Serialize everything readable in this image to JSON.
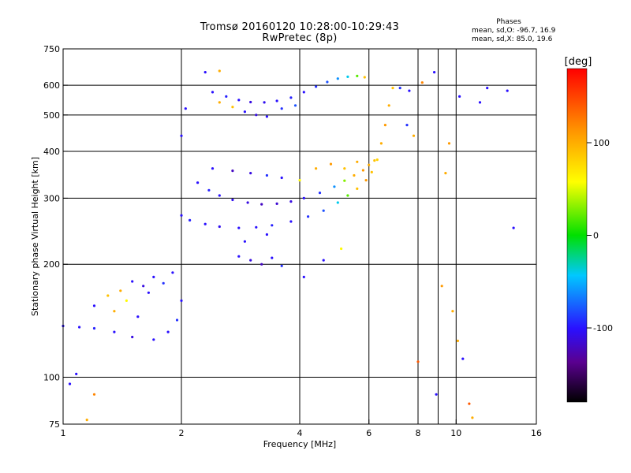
{
  "header": {
    "title": "Tromsø 20160120 10:28:00-10:29:43",
    "subtitle": "RwPretec (8p)",
    "stats_title": "Phases",
    "stats_lines": [
      "mean, sd,O: -96.7, 16.9",
      "mean, sd,X:  85.0, 19.6"
    ]
  },
  "colorbar": {
    "label": "[deg]",
    "ticks": [
      {
        "value": 100,
        "label": "100"
      },
      {
        "value": 0,
        "label": "0"
      },
      {
        "value": -100,
        "label": "-100"
      }
    ],
    "range": [
      -180,
      180
    ]
  },
  "chart_data": {
    "type": "scatter",
    "title": "Tromsø 20160120 10:28:00-10:29:43",
    "subtitle": "RwPretec (8p)",
    "xlabel": "Frequency [MHz]",
    "ylabel": "Stationary phase Virtual Height [km]",
    "x_scale": "log",
    "y_scale": "log",
    "xlim": [
      1,
      16
    ],
    "ylim": [
      75,
      750
    ],
    "x_ticks": [
      {
        "value": 1,
        "label": "1"
      },
      {
        "value": 2,
        "label": "2"
      },
      {
        "value": 4,
        "label": "4"
      },
      {
        "value": 6,
        "label": "6"
      },
      {
        "value": 8,
        "label": "8"
      },
      {
        "value": 10,
        "label": "10"
      },
      {
        "value": 16,
        "label": "16"
      }
    ],
    "y_ticks": [
      {
        "value": 75,
        "label": "75"
      },
      {
        "value": 100,
        "label": "100"
      },
      {
        "value": 200,
        "label": "200"
      },
      {
        "value": 300,
        "label": "300"
      },
      {
        "value": 400,
        "label": "400"
      },
      {
        "value": 500,
        "label": "500"
      },
      {
        "value": 600,
        "label": "600"
      },
      {
        "value": 750,
        "label": "750"
      }
    ],
    "x_grid": [
      2,
      4,
      6,
      8,
      9,
      10
    ],
    "y_grid": [
      100,
      200,
      300,
      400,
      500,
      600
    ],
    "color_value": "phase (deg)",
    "series": [
      {
        "points": [
          [
            2.0,
            270,
            -100
          ],
          [
            2.1,
            262,
            -95
          ],
          [
            2.3,
            256,
            -100
          ],
          [
            2.5,
            252,
            -105
          ],
          [
            2.8,
            250,
            -100
          ],
          [
            3.1,
            251,
            -100
          ],
          [
            3.4,
            254,
            -95
          ],
          [
            3.8,
            260,
            -100
          ],
          [
            4.2,
            268,
            -90
          ],
          [
            4.6,
            278,
            -80
          ],
          [
            5.0,
            292,
            -40
          ],
          [
            5.3,
            305,
            20
          ],
          [
            5.6,
            318,
            90
          ],
          [
            5.9,
            335,
            110
          ],
          [
            6.1,
            352,
            90
          ],
          [
            6.3,
            380,
            80
          ],
          [
            6.45,
            420,
            100
          ],
          [
            6.6,
            470,
            110
          ],
          [
            6.75,
            530,
            100
          ],
          [
            6.9,
            590,
            90
          ]
        ]
      },
      {
        "points": [
          [
            2.2,
            330,
            -100
          ],
          [
            2.35,
            315,
            -95
          ],
          [
            2.5,
            305,
            -100
          ],
          [
            2.7,
            297,
            -105
          ],
          [
            2.95,
            292,
            -110
          ],
          [
            3.2,
            289,
            -120
          ],
          [
            3.5,
            290,
            -115
          ],
          [
            3.8,
            294,
            -110
          ],
          [
            4.1,
            300,
            -100
          ],
          [
            4.5,
            310,
            -90
          ],
          [
            4.9,
            322,
            -60
          ],
          [
            5.2,
            334,
            30
          ],
          [
            5.5,
            345,
            100
          ],
          [
            5.8,
            356,
            110
          ],
          [
            6.0,
            368,
            100
          ],
          [
            6.2,
            378,
            90
          ]
        ]
      },
      {
        "points": [
          [
            2.4,
            575,
            -100
          ],
          [
            2.6,
            560,
            -95
          ],
          [
            2.8,
            548,
            -100
          ],
          [
            3.0,
            541,
            -110
          ],
          [
            3.25,
            540,
            -105
          ],
          [
            3.5,
            545,
            -100
          ],
          [
            3.8,
            556,
            -95
          ],
          [
            4.1,
            575,
            -100
          ],
          [
            4.4,
            595,
            -90
          ],
          [
            4.7,
            612,
            -80
          ],
          [
            5.0,
            625,
            -60
          ],
          [
            5.3,
            632,
            -40
          ],
          [
            5.6,
            635,
            20
          ],
          [
            5.85,
            630,
            90
          ]
        ]
      },
      {
        "points": [
          [
            2.5,
            540,
            100
          ],
          [
            2.7,
            525,
            90
          ],
          [
            2.9,
            510,
            -100
          ],
          [
            3.1,
            500,
            -110
          ],
          [
            3.3,
            495,
            -100
          ],
          [
            3.6,
            520,
            -90
          ],
          [
            3.9,
            530,
            -80
          ]
        ]
      },
      {
        "points": [
          [
            2.4,
            360,
            -100
          ],
          [
            2.7,
            355,
            -120
          ],
          [
            3.0,
            350,
            -110
          ],
          [
            3.3,
            345,
            -90
          ],
          [
            3.6,
            340,
            -100
          ],
          [
            4.0,
            335,
            60
          ],
          [
            4.4,
            360,
            100
          ],
          [
            4.8,
            370,
            110
          ],
          [
            5.2,
            360,
            90
          ],
          [
            5.6,
            375,
            100
          ]
        ]
      },
      {
        "points": [
          [
            1.0,
            137,
            -100
          ],
          [
            1.1,
            136,
            -100
          ],
          [
            1.2,
            135,
            -95
          ],
          [
            1.35,
            132,
            -100
          ],
          [
            1.5,
            128,
            -110
          ],
          [
            1.7,
            126,
            -100
          ],
          [
            1.85,
            132,
            -100
          ],
          [
            1.95,
            142,
            -90
          ],
          [
            2.0,
            160,
            -100
          ]
        ]
      },
      {
        "points": [
          [
            1.2,
            155,
            -100
          ],
          [
            1.3,
            165,
            90
          ],
          [
            1.4,
            170,
            100
          ],
          [
            1.5,
            180,
            -100
          ],
          [
            1.6,
            175,
            -110
          ],
          [
            1.7,
            185,
            -100
          ],
          [
            1.8,
            178,
            -90
          ],
          [
            1.9,
            190,
            -100
          ],
          [
            1.35,
            150,
            100
          ],
          [
            1.45,
            160,
            60
          ],
          [
            1.55,
            145,
            -100
          ],
          [
            1.65,
            168,
            -100
          ]
        ]
      },
      {
        "points": [
          [
            2.8,
            210,
            -100
          ],
          [
            3.0,
            205,
            -110
          ],
          [
            3.2,
            200,
            -120
          ],
          [
            3.4,
            208,
            -100
          ],
          [
            3.6,
            198,
            -90
          ],
          [
            2.9,
            230,
            -100
          ],
          [
            3.3,
            240,
            -100
          ]
        ]
      },
      {
        "points": [
          [
            1.04,
            96,
            -100
          ],
          [
            1.08,
            102,
            -100
          ],
          [
            2.0,
            440,
            -100
          ],
          [
            2.05,
            520,
            -100
          ],
          [
            2.3,
            650,
            -100
          ],
          [
            2.5,
            655,
            100
          ],
          [
            7.2,
            590,
            -90
          ],
          [
            7.6,
            580,
            -100
          ],
          [
            8.2,
            610,
            120
          ],
          [
            8.8,
            650,
            -100
          ],
          [
            10.2,
            560,
            -100
          ],
          [
            11.5,
            540,
            -100
          ],
          [
            12.0,
            590,
            -100
          ],
          [
            13.5,
            580,
            -100
          ],
          [
            14.0,
            250,
            -100
          ],
          [
            9.2,
            175,
            110
          ],
          [
            9.8,
            150,
            100
          ],
          [
            10.1,
            125,
            100
          ],
          [
            10.4,
            112,
            -100
          ],
          [
            10.8,
            85,
            140
          ],
          [
            11.0,
            78,
            100
          ],
          [
            8.0,
            110,
            140
          ],
          [
            8.9,
            90,
            -100
          ],
          [
            9.4,
            350,
            100
          ],
          [
            9.6,
            420,
            110
          ],
          [
            7.5,
            470,
            -90
          ],
          [
            7.8,
            440,
            100
          ],
          [
            4.1,
            185,
            -100
          ],
          [
            4.6,
            205,
            -100
          ],
          [
            5.1,
            220,
            60
          ],
          [
            1.2,
            90,
            120
          ],
          [
            1.15,
            77,
            100
          ]
        ]
      }
    ]
  }
}
